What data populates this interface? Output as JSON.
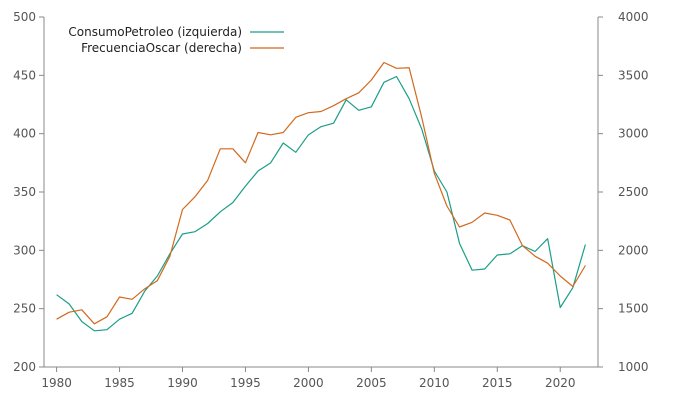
{
  "chart_data": {
    "type": "line",
    "x": [
      1980,
      1981,
      1982,
      1983,
      1984,
      1985,
      1986,
      1987,
      1988,
      1989,
      1990,
      1991,
      1992,
      1993,
      1994,
      1995,
      1996,
      1997,
      1998,
      1999,
      2000,
      2001,
      2002,
      2003,
      2004,
      2005,
      2006,
      2007,
      2008,
      2009,
      2010,
      2011,
      2012,
      2013,
      2014,
      2015,
      2016,
      2017,
      2018,
      2019,
      2020,
      2021,
      2022
    ],
    "xticks": [
      1980,
      1985,
      1990,
      1995,
      2000,
      2005,
      2010,
      2015,
      2020
    ],
    "xlim": [
      1979,
      2023
    ],
    "y_left": {
      "lim": [
        200,
        500
      ],
      "ticks": [
        200,
        250,
        300,
        350,
        400,
        450,
        500
      ]
    },
    "y_right": {
      "lim": [
        1000,
        4000
      ],
      "ticks": [
        1000,
        1500,
        2000,
        2500,
        3000,
        3500,
        4000
      ]
    },
    "legend_position": "top-left",
    "grid": false,
    "series": [
      {
        "name": "ConsumoPetroleo (izquierda)",
        "axis": "left",
        "color": "#1a9e87",
        "values": [
          262,
          254,
          239,
          231,
          232,
          241,
          246,
          265,
          278,
          297,
          314,
          316,
          323,
          333,
          341,
          355,
          368,
          375,
          392,
          384,
          399,
          406,
          409,
          429,
          420,
          423,
          444,
          449,
          430,
          404,
          368,
          350,
          306,
          283,
          284,
          296,
          297,
          304,
          299,
          310,
          251,
          268,
          305
        ]
      },
      {
        "name": "FrecuenciaOscar (derecha)",
        "axis": "right",
        "color": "#d2691e",
        "values": [
          1410,
          1470,
          1490,
          1370,
          1430,
          1600,
          1580,
          1670,
          1740,
          1950,
          2350,
          2460,
          2600,
          2870,
          2870,
          2750,
          3010,
          2990,
          3010,
          3140,
          3180,
          3190,
          3240,
          3300,
          3350,
          3460,
          3610,
          3560,
          3565,
          3140,
          2660,
          2380,
          2200,
          2240,
          2320,
          2300,
          2260,
          2040,
          1950,
          1890,
          1780,
          1690,
          1870
        ]
      }
    ]
  }
}
